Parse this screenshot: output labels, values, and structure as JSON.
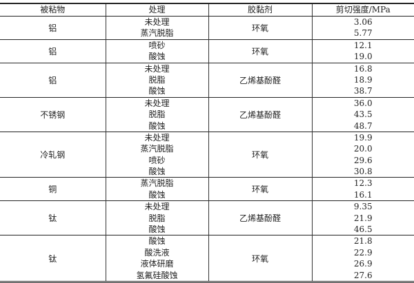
{
  "headers": [
    "被粘物",
    "处理",
    "胶黏剂",
    "剪切强度/MPa"
  ],
  "groups": [
    {
      "adherend": "铝",
      "adhesive": "环氧",
      "treatments": [
        "未处理",
        "蒸汽脱脂"
      ],
      "strengths": [
        "3.06",
        "5.77"
      ]
    },
    {
      "adherend": "铝",
      "adhesive": "环氧",
      "treatments": [
        "喷砂",
        "酸蚀"
      ],
      "strengths": [
        "12.1",
        "19.0"
      ]
    },
    {
      "adherend": "铝",
      "adhesive": "乙烯基酚醛",
      "treatments": [
        "未处理",
        "脱脂",
        "酸蚀"
      ],
      "strengths": [
        "16.8",
        "18.9",
        "38.7"
      ]
    },
    {
      "adherend": "不锈钢",
      "adhesive": "乙烯基酚醛",
      "treatments": [
        "未处理",
        "脱脂",
        "酸蚀"
      ],
      "strengths": [
        "36.0",
        "43.5",
        "48.7"
      ]
    },
    {
      "adherend": "冷轧钢",
      "adhesive": "环氧",
      "treatments": [
        "未处理",
        "蒸汽脱脂",
        "喷砂",
        "酸蚀"
      ],
      "strengths": [
        "19.9",
        "20.0",
        "29.6",
        "30.8"
      ]
    },
    {
      "adherend": "铜",
      "adhesive": "环氧",
      "treatments": [
        "蒸汽脱脂",
        "酸蚀"
      ],
      "strengths": [
        "12.3",
        "16.1"
      ]
    },
    {
      "adherend": "钛",
      "adhesive": "乙烯基酚醛",
      "treatments": [
        "未处理",
        "脱脂",
        "酸蚀"
      ],
      "strengths": [
        "9.35",
        "21.9",
        "46.5"
      ]
    },
    {
      "adherend": "钛",
      "adhesive": "环氧",
      "treatments": [
        "酸蚀",
        "酸洗液",
        "液体研磨",
        "氢氟硅酸蚀"
      ],
      "strengths": [
        "21.8",
        "22.9",
        "26.9",
        "27.6"
      ]
    }
  ]
}
